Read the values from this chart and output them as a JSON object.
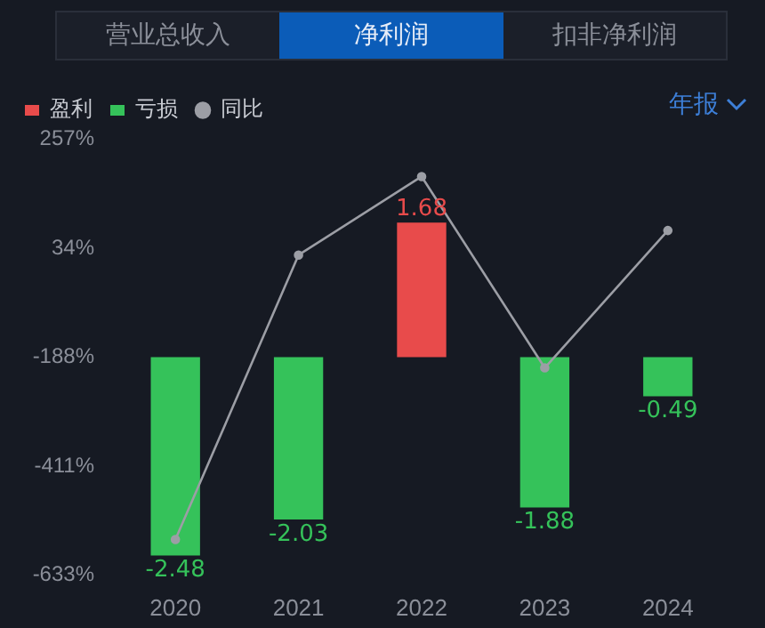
{
  "chart_data": {
    "type": "bar",
    "stacked": true,
    "categories": [
      "2020",
      "2021",
      "2022",
      "2023",
      "2024"
    ],
    "series": [
      {
        "name": "盈利",
        "axis": "y2",
        "color": "#e84b4b",
        "values": [
          null,
          null,
          1.68,
          null,
          null
        ],
        "value_labels": [
          null,
          null,
          "1.68",
          null,
          null
        ]
      },
      {
        "name": "亏损",
        "axis": "y2",
        "color": "#35c25a",
        "values": [
          -2.48,
          -2.03,
          null,
          -1.88,
          -0.49
        ],
        "value_labels": [
          "-2.48",
          "-2.03",
          null,
          "-1.88",
          "-0.49"
        ]
      },
      {
        "name": "同比",
        "type": "line",
        "color": "#9c9ea5",
        "values": [
          -560,
          20,
          180,
          -210,
          70
        ]
      }
    ],
    "ylim": [
      -633,
      257
    ],
    "yticks": [
      {
        "value": 257,
        "label": "257%"
      },
      {
        "value": 34,
        "label": "34%"
      },
      {
        "value": -188,
        "label": "-188%"
      },
      {
        "value": -411,
        "label": "-411%"
      },
      {
        "value": -633,
        "label": "-633%"
      }
    ],
    "grid": false,
    "legend": "top left",
    "marker": "circle",
    "line_style": "solid",
    "annotations": [
      "营业总收入",
      "净利润",
      "扣非净利润",
      "年报"
    ]
  }
}
